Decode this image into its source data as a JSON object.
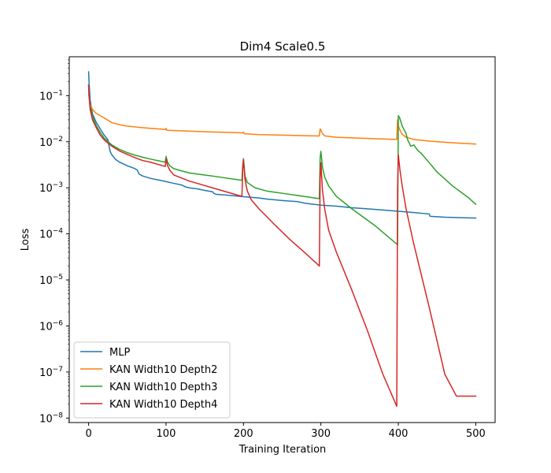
{
  "chart_data": {
    "type": "line",
    "title": "Dim4 Scale0.5",
    "xlabel": "Training Iteration",
    "ylabel": "Loss",
    "yscale": "log",
    "xlim": [
      -25,
      525
    ],
    "ylim": [
      8e-09,
      0.7
    ],
    "xticks": [
      0,
      100,
      200,
      300,
      400,
      500
    ],
    "yticks": [
      1e-08,
      1e-07,
      1e-06,
      1e-05,
      0.0001,
      0.001,
      0.01,
      0.1
    ],
    "ytick_mantissa": "10",
    "ytick_exponents": [
      "−8",
      "−7",
      "−6",
      "−5",
      "−4",
      "−3",
      "−2",
      "−1"
    ],
    "legend_position": "lower-left",
    "series": [
      {
        "name": "MLP",
        "color": "#1f77b4",
        "x": [
          0,
          0.5,
          2,
          5,
          10,
          15,
          20,
          25,
          26,
          28,
          30,
          35,
          40,
          50,
          60,
          63,
          65,
          70,
          80,
          90,
          100,
          110,
          120,
          125,
          130,
          140,
          150,
          160,
          162,
          165,
          180,
          200,
          220,
          230,
          250,
          270,
          280,
          300,
          320,
          340,
          360,
          380,
          400,
          420,
          440,
          441,
          460,
          480,
          500
        ],
        "y": [
          0.33,
          0.2,
          0.08,
          0.04,
          0.026,
          0.019,
          0.014,
          0.011,
          0.0085,
          0.006,
          0.0052,
          0.0041,
          0.0036,
          0.003,
          0.0026,
          0.0024,
          0.002,
          0.0018,
          0.0016,
          0.00148,
          0.00136,
          0.00125,
          0.00115,
          0.00105,
          0.001,
          0.00095,
          0.00088,
          0.00082,
          0.00075,
          0.00072,
          0.00069,
          0.00064,
          0.0006,
          0.00057,
          0.00053,
          0.0005,
          0.00046,
          0.00042,
          0.0004,
          0.00037,
          0.00035,
          0.00033,
          0.00031,
          0.00029,
          0.00027,
          0.00024,
          0.00023,
          0.000225,
          0.00022
        ]
      },
      {
        "name": "KAN Width10 Depth2",
        "color": "#ff7f0e",
        "x": [
          0,
          0.5,
          2,
          5,
          10,
          20,
          30,
          40,
          50,
          70,
          99,
          100,
          101,
          120,
          150,
          199,
          200,
          201,
          220,
          260,
          297,
          298,
          299,
          300,
          302,
          305,
          320,
          360,
          397,
          398,
          399,
          400,
          402,
          405,
          410,
          420,
          440,
          470,
          500
        ],
        "y": [
          0.17,
          0.1,
          0.065,
          0.05,
          0.041,
          0.033,
          0.026,
          0.0235,
          0.0218,
          0.0202,
          0.0185,
          0.0195,
          0.0177,
          0.0172,
          0.0165,
          0.0156,
          0.0162,
          0.0149,
          0.0143,
          0.0138,
          0.0133,
          0.0135,
          0.019,
          0.0178,
          0.015,
          0.0134,
          0.0125,
          0.0118,
          0.0112,
          0.0112,
          0.03,
          0.022,
          0.018,
          0.0145,
          0.0125,
          0.0112,
          0.0103,
          0.0095,
          0.0089
        ]
      },
      {
        "name": "KAN Width10 Depth3",
        "color": "#2ca02c",
        "x": [
          0,
          0.5,
          2,
          5,
          10,
          15,
          20,
          30,
          40,
          50,
          60,
          70,
          80,
          99,
          100,
          102,
          105,
          110,
          130,
          160,
          198,
          199,
          200,
          202,
          205,
          215,
          230,
          260,
          298,
          299,
          300,
          302,
          305,
          310,
          320,
          340,
          370,
          399,
          400,
          402,
          405,
          410,
          412,
          414,
          416,
          420,
          425,
          430,
          440,
          450,
          470,
          490,
          500
        ],
        "y": [
          0.17,
          0.1,
          0.058,
          0.035,
          0.022,
          0.016,
          0.012,
          0.0085,
          0.0068,
          0.0058,
          0.0051,
          0.0046,
          0.0042,
          0.0036,
          0.0048,
          0.0036,
          0.003,
          0.0026,
          0.0021,
          0.0018,
          0.00145,
          0.003,
          0.0043,
          0.0018,
          0.0013,
          0.001,
          0.00085,
          0.00072,
          0.00058,
          0.0045,
          0.0062,
          0.0028,
          0.0017,
          0.0011,
          0.00065,
          0.00035,
          0.00015,
          5.8e-05,
          0.037,
          0.032,
          0.022,
          0.015,
          0.011,
          0.0095,
          0.008,
          0.0085,
          0.0065,
          0.0055,
          0.0035,
          0.0022,
          0.0011,
          0.00062,
          0.00044
        ]
      },
      {
        "name": "KAN Width10 Depth4",
        "color": "#d62728",
        "x": [
          0,
          0.5,
          2,
          5,
          10,
          15,
          20,
          30,
          40,
          50,
          60,
          70,
          80,
          99,
          100,
          102,
          105,
          110,
          130,
          160,
          198,
          199,
          200,
          202,
          205,
          210,
          220,
          240,
          260,
          280,
          298,
          299,
          300,
          302,
          305,
          310,
          320,
          340,
          360,
          380,
          398,
          399,
          400,
          402,
          405,
          410,
          420,
          440,
          460,
          475,
          480,
          500
        ],
        "y": [
          0.17,
          0.1,
          0.05,
          0.03,
          0.02,
          0.014,
          0.011,
          0.008,
          0.0063,
          0.0053,
          0.0045,
          0.0039,
          0.0036,
          0.0029,
          0.0042,
          0.003,
          0.0024,
          0.0019,
          0.0014,
          0.001,
          0.00065,
          0.0025,
          0.004,
          0.0015,
          0.00085,
          0.00055,
          0.00035,
          0.00016,
          7.5e-05,
          3.8e-05,
          2e-05,
          0.0015,
          0.0035,
          0.0009,
          0.00034,
          0.00012,
          4e-05,
          6e-06,
          8e-07,
          9e-08,
          1.8e-08,
          0.001,
          0.0052,
          0.0025,
          0.0011,
          0.00035,
          6e-05,
          2.5e-06,
          9e-08,
          3e-08,
          3e-08,
          3e-08
        ]
      }
    ]
  }
}
